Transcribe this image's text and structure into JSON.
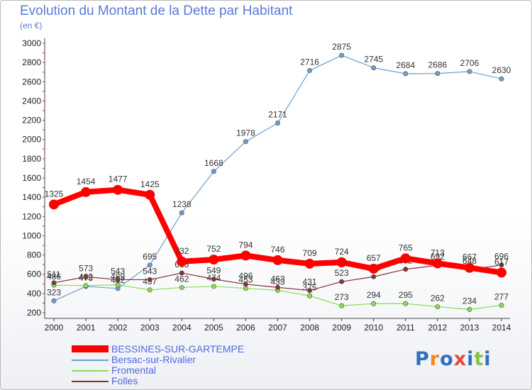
{
  "title": "Evolution du Montant de la Dette par Habitant",
  "subtitle": "(en €)",
  "logo_text": "Proxiti",
  "chart_data": {
    "type": "line",
    "x": [
      "2000",
      "2001",
      "2002",
      "2003",
      "2004",
      "2005",
      "2006",
      "2007",
      "2008",
      "2009",
      "2010",
      "2011",
      "2012",
      "2013",
      "2014"
    ],
    "ylim": [
      200,
      3000
    ],
    "yticks": [
      200,
      400,
      600,
      800,
      1000,
      1200,
      1400,
      1600,
      1800,
      2000,
      2200,
      2400,
      2600,
      2800,
      3000
    ],
    "grid": false,
    "legend_position": "bottom-left",
    "series": [
      {
        "name": "BESSINES-SUR-GARTEMPE",
        "color": "#ff0000",
        "width": 8,
        "values": [
          1325,
          1454,
          1477,
          1425,
          732,
          752,
          794,
          746,
          709,
          724,
          657,
          765,
          713,
          667,
          617
        ]
      },
      {
        "name": "Bersac-sur-Rivalier",
        "color": "#6a9fcf",
        "width": 1.2,
        "values": [
          323,
          473,
          452,
          695,
          1238,
          1668,
          1978,
          2171,
          2716,
          2875,
          2745,
          2684,
          2686,
          2706,
          2630
        ]
      },
      {
        "name": "Fromental",
        "color": "#88dd55",
        "width": 1.2,
        "values": [
          486,
          482,
          489,
          437,
          462,
          474,
          453,
          433,
          375,
          273,
          294,
          295,
          262,
          234,
          277
        ]
      },
      {
        "name": "Folles",
        "color": "#883333",
        "width": 1.2,
        "values": [
          511,
          573,
          543,
          543,
          613,
          549,
          496,
          463,
          431,
          523,
          574,
          652,
          692,
          648,
          696
        ]
      }
    ]
  }
}
